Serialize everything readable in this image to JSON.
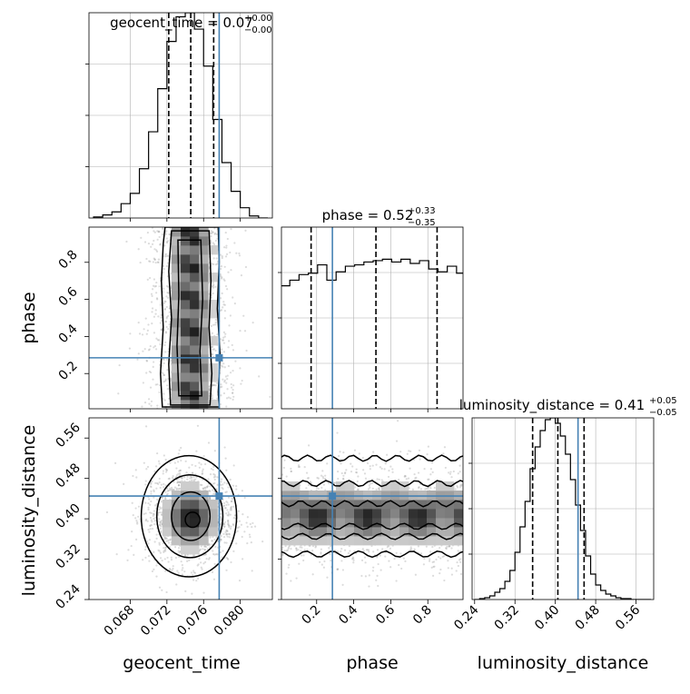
{
  "figure": {
    "type": "corner plot",
    "parameters": [
      "geocent_time",
      "phase",
      "luminosity_distance"
    ]
  },
  "chart_data": [
    {
      "type": "line",
      "panel": "hist-geocent_time",
      "title_main": "geocent_time = 0.07",
      "title_sup": "+0.00",
      "title_sub": "−0.00",
      "xlim": [
        0.0635,
        0.0835
      ],
      "ylim": [
        0,
        1.0
      ],
      "bins": [
        0.0645,
        0.0655,
        0.0665,
        0.0675,
        0.0685,
        0.0695,
        0.0705,
        0.0715,
        0.0725,
        0.0735,
        0.0745,
        0.0755,
        0.0765,
        0.0775,
        0.0785,
        0.0795,
        0.0805,
        0.0815,
        0.0825
      ],
      "values": [
        0.005,
        0.015,
        0.03,
        0.07,
        0.12,
        0.24,
        0.42,
        0.63,
        0.86,
        0.98,
        1.0,
        0.92,
        0.74,
        0.48,
        0.27,
        0.13,
        0.05,
        0.01,
        0.0
      ],
      "quantile_lines": [
        0.0722,
        0.0746,
        0.0771
      ],
      "truth": 0.0777,
      "xticks": [
        "0.068",
        "0.072",
        "0.076",
        "0.080"
      ],
      "xtick_values": [
        0.068,
        0.072,
        0.076,
        0.08
      ],
      "xlabel": "geocent_time",
      "grid": true
    },
    {
      "type": "heatmap",
      "panel": "phase-vs-geocent_time",
      "xlim": [
        0.0635,
        0.0835
      ],
      "ylim": [
        0.01,
        0.99
      ],
      "yticks": [
        "0.2",
        "0.4",
        "0.6",
        "0.8"
      ],
      "ytick_values": [
        0.2,
        0.4,
        0.6,
        0.8
      ],
      "ylabel": "phase",
      "truth_x": 0.0777,
      "truth_y": 0.285,
      "contours": [
        {
          "level": 1,
          "points": [
            [
              0.0715,
              0.02
            ],
            [
              0.0713,
              0.2
            ],
            [
              0.0716,
              0.45
            ],
            [
              0.0714,
              0.7
            ],
            [
              0.0716,
              0.9
            ],
            [
              0.0718,
              0.99
            ],
            [
              0.0776,
              0.99
            ],
            [
              0.0777,
              0.8
            ],
            [
              0.0775,
              0.55
            ],
            [
              0.0778,
              0.3
            ],
            [
              0.0776,
              0.1
            ],
            [
              0.0777,
              0.02
            ]
          ]
        },
        {
          "level": 2,
          "points": [
            [
              0.0724,
              0.03
            ],
            [
              0.0722,
              0.25
            ],
            [
              0.0725,
              0.5
            ],
            [
              0.0722,
              0.75
            ],
            [
              0.0725,
              0.97
            ],
            [
              0.0766,
              0.97
            ],
            [
              0.0768,
              0.7
            ],
            [
              0.0766,
              0.45
            ],
            [
              0.0769,
              0.2
            ],
            [
              0.0767,
              0.03
            ]
          ]
        },
        {
          "level": 3,
          "points": [
            [
              0.0733,
              0.08
            ],
            [
              0.0731,
              0.35
            ],
            [
              0.0733,
              0.62
            ],
            [
              0.0732,
              0.92
            ],
            [
              0.0757,
              0.92
            ],
            [
              0.0759,
              0.6
            ],
            [
              0.0756,
              0.32
            ],
            [
              0.0758,
              0.08
            ]
          ]
        }
      ]
    },
    {
      "type": "line",
      "panel": "hist-phase",
      "title_main": "phase = 0.52",
      "title_sup": "+0.33",
      "title_sub": "−0.35",
      "xlim": [
        0.01,
        0.99
      ],
      "ylim": [
        0,
        1.3
      ],
      "bins": [
        0.03,
        0.08,
        0.13,
        0.18,
        0.23,
        0.28,
        0.33,
        0.38,
        0.43,
        0.48,
        0.53,
        0.58,
        0.63,
        0.68,
        0.73,
        0.78,
        0.83,
        0.88,
        0.93,
        0.98
      ],
      "values": [
        0.88,
        0.92,
        0.96,
        0.97,
        1.03,
        0.92,
        0.98,
        1.02,
        1.03,
        1.05,
        1.06,
        1.07,
        1.05,
        1.07,
        1.04,
        1.06,
        1.0,
        0.98,
        1.02,
        0.97
      ],
      "quantile_lines": [
        0.17,
        0.52,
        0.85
      ],
      "truth": 0.285,
      "xticks": [
        "0.2",
        "0.4",
        "0.6",
        "0.8"
      ],
      "xtick_values": [
        0.2,
        0.4,
        0.6,
        0.8
      ],
      "xlabel": "phase",
      "grid": true
    },
    {
      "type": "heatmap",
      "panel": "luminosity_distance-vs-geocent_time",
      "xlim": [
        0.0635,
        0.0835
      ],
      "ylim": [
        0.24,
        0.6
      ],
      "yticks": [
        "0.24",
        "0.32",
        "0.40",
        "0.48",
        "0.56"
      ],
      "ytick_values": [
        0.24,
        0.32,
        0.4,
        0.48,
        0.56
      ],
      "ylabel": "luminosity_distance",
      "truth_x": 0.0777,
      "truth_y": 0.445,
      "contours": [
        {
          "level": 1,
          "rx": 0.0052,
          "ry": 0.12,
          "cx": 0.0744,
          "cy": 0.405
        },
        {
          "level": 2,
          "rx": 0.0036,
          "ry": 0.082,
          "cx": 0.0745,
          "cy": 0.405
        },
        {
          "level": 3,
          "rx": 0.0021,
          "ry": 0.048,
          "cx": 0.0746,
          "cy": 0.405
        },
        {
          "level": 4,
          "rx": 0.0008,
          "ry": 0.015,
          "cx": 0.0748,
          "cy": 0.398
        }
      ]
    },
    {
      "type": "heatmap",
      "panel": "luminosity_distance-vs-phase",
      "xlim": [
        0.01,
        0.99
      ],
      "ylim": [
        0.24,
        0.6
      ],
      "xticks": [
        "0.2",
        "0.4",
        "0.6",
        "0.8"
      ],
      "xtick_values": [
        0.2,
        0.4,
        0.6,
        0.8
      ],
      "xlabel": "phase",
      "truth_x": 0.285,
      "truth_y": 0.445
    },
    {
      "type": "line",
      "panel": "hist-luminosity_distance",
      "title_main": "luminosity_distance = 0.41",
      "title_sup": "+0.05",
      "title_sub": "−0.05",
      "xlim": [
        0.235,
        0.595
      ],
      "ylim": [
        0,
        1.0
      ],
      "bins": [
        0.245,
        0.255,
        0.265,
        0.275,
        0.285,
        0.295,
        0.305,
        0.315,
        0.325,
        0.335,
        0.345,
        0.355,
        0.365,
        0.375,
        0.385,
        0.395,
        0.405,
        0.415,
        0.425,
        0.435,
        0.445,
        0.455,
        0.465,
        0.475,
        0.485,
        0.495,
        0.505,
        0.515,
        0.525,
        0.535,
        0.545,
        0.555,
        0.565,
        0.575,
        0.585
      ],
      "values": [
        0.0,
        0.005,
        0.01,
        0.02,
        0.04,
        0.06,
        0.1,
        0.16,
        0.26,
        0.4,
        0.54,
        0.72,
        0.84,
        0.93,
        0.99,
        1.0,
        0.97,
        0.9,
        0.8,
        0.66,
        0.52,
        0.38,
        0.24,
        0.14,
        0.08,
        0.05,
        0.03,
        0.02,
        0.01,
        0.005,
        0.005,
        0.0,
        0.0,
        0.0,
        0.0
      ],
      "quantile_lines": [
        0.355,
        0.405,
        0.457
      ],
      "truth": 0.445,
      "xticks": [
        "0.24",
        "0.32",
        "0.40",
        "0.48",
        "0.56"
      ],
      "xtick_values": [
        0.24,
        0.32,
        0.4,
        0.48,
        0.56
      ],
      "xlabel": "luminosity_distance",
      "grid": true
    }
  ],
  "colors": {
    "truth": "#4682b4",
    "line": "#000000",
    "grid": "#b0b0b0",
    "scatter": "#9a9a9a"
  }
}
